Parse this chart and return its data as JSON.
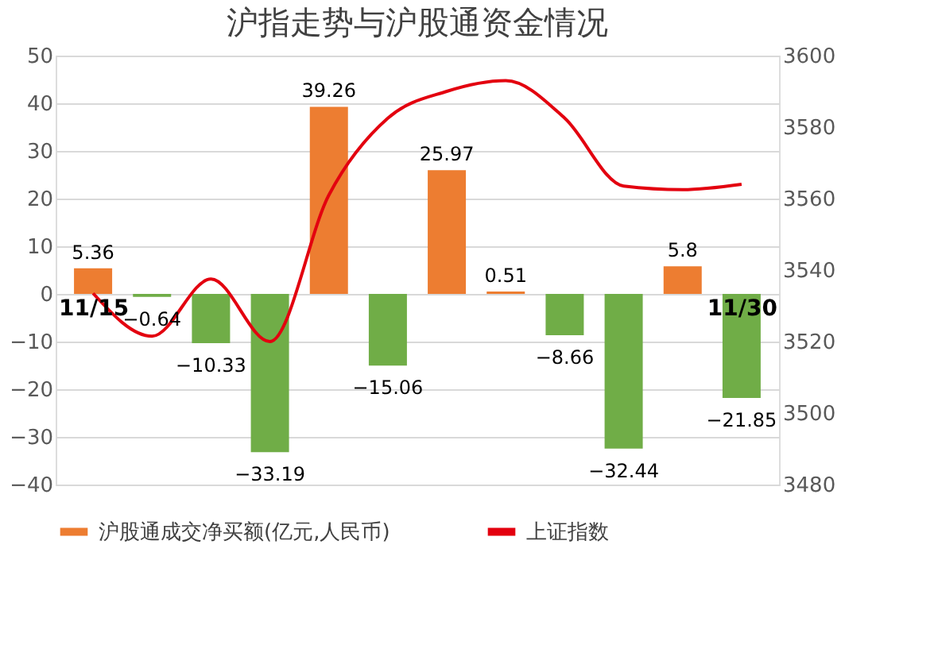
{
  "chart_data": {
    "type": "bar",
    "title": "沪指走势与沪股通资金情况",
    "categories": [
      "11/15",
      null,
      null,
      null,
      null,
      null,
      null,
      null,
      null,
      null,
      null,
      "11/30"
    ],
    "series": [
      {
        "name": "沪股通成交净买额(亿元,人民币)",
        "color": "#ed7d31",
        "colors": [
          "#ed7d31",
          "#70ad47",
          "#70ad47",
          "#70ad47",
          "#ed7d31",
          "#70ad47",
          "#ed7d31",
          "#ed7d31",
          "#70ad47",
          "#70ad47",
          "#ed7d31",
          "#70ad47"
        ],
        "values": [
          5.36,
          -0.64,
          -10.33,
          -33.19,
          39.26,
          -15.06,
          25.97,
          0.51,
          -8.66,
          -32.44,
          5.8,
          -21.85
        ],
        "value_labels": [
          "5.36",
          "−0.64",
          "−10.33",
          "−33.19",
          "39.26",
          "−15.06",
          "25.97",
          "0.51",
          "−8.66",
          "−32.44",
          "5.8",
          "−21.85"
        ]
      },
      {
        "name": "上证指数",
        "type": "line",
        "axis": "y2",
        "color": "#e3000f",
        "values": [
          3533.5,
          3521.5,
          3537.5,
          3520,
          3561,
          3582.5,
          3590,
          3593,
          3582.5,
          3563.5,
          3562.5,
          3564
        ]
      }
    ],
    "ylim": [
      -40,
      50
    ],
    "yticks": [
      -40,
      -30,
      -20,
      -10,
      0,
      10,
      20,
      30,
      40,
      50
    ],
    "y2lim": [
      3480,
      3600
    ],
    "y2ticks": [
      3480,
      3500,
      3520,
      3540,
      3560,
      3580,
      3600
    ],
    "grid": "y",
    "legend": "bottom"
  }
}
